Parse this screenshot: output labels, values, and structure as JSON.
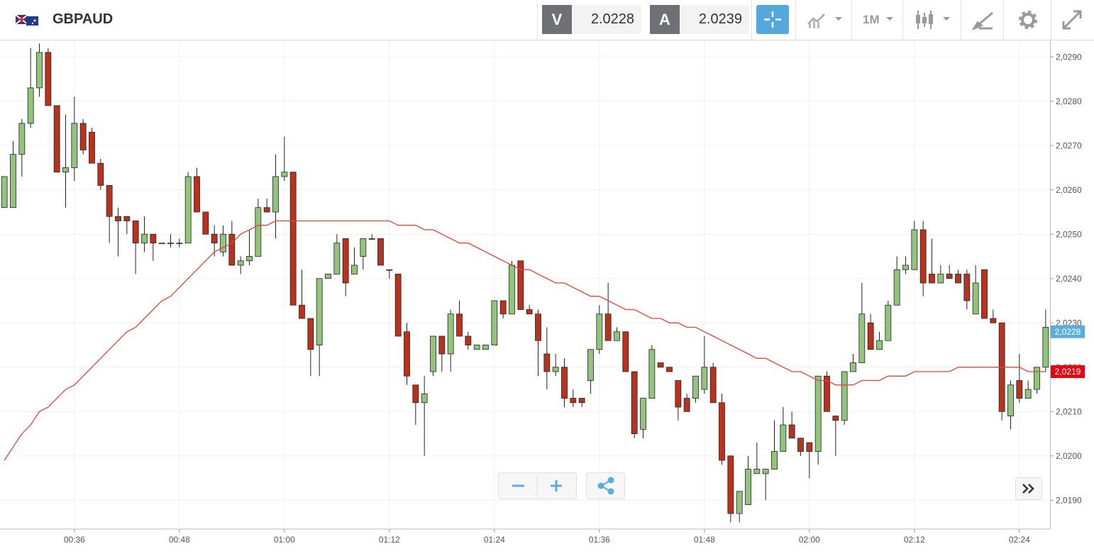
{
  "header": {
    "symbol": "GBPAUD",
    "bid_label": "V",
    "bid": "2.0228",
    "ask_label": "A",
    "ask": "2.0239",
    "timeframe": "1M"
  },
  "chart_data": {
    "type": "candlestick",
    "categories": [
      null,
      null,
      null,
      null,
      null,
      null,
      null,
      null,
      "00:36",
      null,
      null,
      null,
      null,
      null,
      null,
      null,
      null,
      null,
      null,
      null,
      "00:48",
      null,
      null,
      null,
      null,
      null,
      null,
      null,
      null,
      null,
      null,
      null,
      "01:00",
      null,
      null,
      null,
      null,
      null,
      null,
      null,
      null,
      null,
      null,
      null,
      "01:12",
      null,
      null,
      null,
      null,
      null,
      null,
      null,
      null,
      null,
      null,
      null,
      "01:24",
      null,
      null,
      null,
      null,
      null,
      null,
      null,
      null,
      null,
      null,
      null,
      "01:36",
      null,
      null,
      null,
      null,
      null,
      null,
      null,
      null,
      null,
      null,
      null,
      "01:48",
      null,
      null,
      null,
      null,
      null,
      null,
      null,
      null,
      null,
      null,
      null,
      "02:00",
      null,
      null,
      null,
      null,
      null,
      null,
      null,
      null,
      null,
      null,
      null,
      "02:12",
      null,
      null,
      null,
      null,
      null,
      null,
      null,
      null,
      null,
      null,
      null,
      "02:24",
      null,
      null,
      null
    ],
    "open": [
      2.0256,
      2.0256,
      2.0268,
      2.0275,
      2.0283,
      2.0291,
      2.0279,
      2.0264,
      2.0265,
      2.0275,
      2.0273,
      2.0266,
      2.0261,
      2.0254,
      2.0254,
      2.0253,
      2.0248,
      2.025,
      2.0248,
      2.0248,
      2.0248,
      2.0248,
      2.0263,
      2.0255,
      2.025,
      2.0246,
      2.025,
      2.0243,
      2.0244,
      2.0245,
      2.0256,
      2.0255,
      2.0263,
      2.0264,
      2.0234,
      2.0231,
      2.0225,
      2.024,
      2.0241,
      2.0249,
      2.0241,
      2.0245,
      2.0249,
      2.0249,
      2.0242,
      2.0241,
      2.0228,
      2.0216,
      2.0212,
      2.0219,
      2.0227,
      2.0223,
      2.0232,
      2.0227,
      2.0224,
      2.0224,
      2.0225,
      2.0235,
      2.0232,
      2.0244,
      2.0233,
      2.0232,
      2.0223,
      2.0219,
      2.022,
      2.0213,
      2.0213,
      2.0217,
      2.0224,
      2.0232,
      2.0226,
      2.0228,
      2.0219,
      2.0206,
      2.0213,
      2.0221,
      2.022,
      2.0217,
      2.0213,
      2.0213,
      2.0215,
      2.022,
      2.0212,
      2.02,
      2.0187,
      2.0189,
      2.0196,
      2.0196,
      2.0197,
      2.0201,
      2.0207,
      2.0204,
      2.0203,
      2.0201,
      2.0218,
      2.0209,
      2.0208,
      2.0219,
      2.0221,
      2.023,
      2.0224,
      2.0226,
      2.0234,
      2.0242,
      2.0242,
      2.0251,
      2.0241,
      2.0239,
      2.0241,
      2.0241,
      2.0241,
      2.0232,
      2.0242,
      2.0231,
      2.023,
      2.0209,
      2.0217,
      2.0213,
      2.0215,
      2.022
    ],
    "high": [
      2.0263,
      2.0271,
      2.0276,
      2.0292,
      2.0293,
      2.0292,
      2.0279,
      2.0277,
      2.0281,
      2.0276,
      2.0274,
      2.0267,
      2.0261,
      2.0256,
      2.0254,
      2.0253,
      2.0254,
      2.025,
      2.0248,
      2.025,
      2.0249,
      2.0264,
      2.0265,
      2.0255,
      2.0252,
      2.0252,
      2.0253,
      2.0245,
      2.0251,
      2.0258,
      2.0258,
      2.0268,
      2.0272,
      2.0264,
      2.0242,
      2.0231,
      2.024,
      2.0241,
      2.025,
      2.0249,
      2.0247,
      2.0249,
      2.025,
      2.0249,
      2.0242,
      2.0241,
      2.023,
      2.0216,
      2.0218,
      2.0227,
      2.0227,
      2.0233,
      2.0235,
      2.0228,
      2.0225,
      2.0225,
      2.0235,
      2.0235,
      2.0244,
      2.0244,
      2.0234,
      2.0233,
      2.0229,
      2.0223,
      2.0222,
      2.0215,
      2.0213,
      2.0224,
      2.0234,
      2.0239,
      2.0229,
      2.0228,
      2.0219,
      2.0213,
      2.0225,
      2.0221,
      2.022,
      2.0217,
      2.0214,
      2.0218,
      2.0227,
      2.0221,
      2.0214,
      2.02,
      2.0192,
      2.02,
      2.0203,
      2.0197,
      2.0208,
      2.0211,
      2.021,
      2.0204,
      2.0203,
      2.0218,
      2.0219,
      2.0209,
      2.0219,
      2.0223,
      2.0239,
      2.0232,
      2.0228,
      2.0235,
      2.0245,
      2.0245,
      2.0253,
      2.0253,
      2.0249,
      2.0243,
      2.0243,
      2.0242,
      2.0242,
      2.0243,
      2.0242,
      2.0233,
      2.023,
      2.0217,
      2.0223,
      2.0217,
      2.022,
      2.0233
    ],
    "low": [
      2.0256,
      2.0256,
      2.0263,
      2.0274,
      2.0281,
      2.0279,
      2.0264,
      2.0256,
      2.0262,
      2.0268,
      2.0266,
      2.026,
      2.0248,
      2.0245,
      2.025,
      2.0241,
      2.0246,
      2.0244,
      2.0248,
      2.0247,
      2.0247,
      2.0248,
      2.0255,
      2.025,
      2.0245,
      2.0245,
      2.0243,
      2.0241,
      2.0243,
      2.0245,
      2.0255,
      2.0249,
      2.0262,
      2.0234,
      2.0231,
      2.0218,
      2.0218,
      2.024,
      2.0241,
      2.0236,
      2.0241,
      2.0242,
      2.0249,
      2.0243,
      2.024,
      2.0227,
      2.0216,
      2.0207,
      2.02,
      2.0218,
      2.0219,
      2.0219,
      2.0227,
      2.0224,
      2.0224,
      2.0224,
      2.0225,
      2.0231,
      2.0232,
      2.0233,
      2.0232,
      2.0218,
      2.0215,
      2.0218,
      2.0211,
      2.0211,
      2.0211,
      2.0214,
      2.0223,
      2.0226,
      2.0226,
      2.0219,
      2.0204,
      2.0204,
      2.0213,
      2.022,
      2.0219,
      2.0208,
      2.021,
      2.0212,
      2.0214,
      2.0212,
      2.0198,
      2.0185,
      2.0185,
      2.0189,
      2.0196,
      2.019,
      2.0197,
      2.0201,
      2.0204,
      2.02,
      2.0195,
      2.0198,
      2.021,
      2.02,
      2.0207,
      2.0219,
      2.0221,
      2.0224,
      2.0224,
      2.0226,
      2.0234,
      2.0241,
      2.0242,
      2.0236,
      2.0239,
      2.0239,
      2.024,
      2.0239,
      2.0233,
      2.0232,
      2.0231,
      2.023,
      2.0208,
      2.0206,
      2.0212,
      2.0213,
      2.0214,
      2.0219
    ],
    "close": [
      2.0263,
      2.0268,
      2.0275,
      2.0283,
      2.0291,
      2.0279,
      2.0264,
      2.0265,
      2.0275,
      2.0269,
      2.0266,
      2.0261,
      2.0254,
      2.0253,
      2.0253,
      2.0248,
      2.025,
      2.0248,
      2.0248,
      2.0248,
      2.0248,
      2.0263,
      2.0255,
      2.025,
      2.0248,
      2.025,
      2.0243,
      2.0244,
      2.0245,
      2.0256,
      2.0255,
      2.0263,
      2.0264,
      2.0234,
      2.0231,
      2.0224,
      2.024,
      2.0241,
      2.0248,
      2.0239,
      2.0243,
      2.0249,
      2.0249,
      2.0243,
      2.0242,
      2.0227,
      2.0218,
      2.0212,
      2.0214,
      2.0227,
      2.0223,
      2.0232,
      2.0227,
      2.0225,
      2.0225,
      2.0225,
      2.0235,
      2.0232,
      2.0243,
      2.0233,
      2.0232,
      2.0226,
      2.0219,
      2.022,
      2.0213,
      2.0212,
      2.0212,
      2.0224,
      2.0232,
      2.0226,
      2.0228,
      2.0219,
      2.0205,
      2.0213,
      2.0224,
      2.022,
      2.0219,
      2.0211,
      2.021,
      2.0218,
      2.022,
      2.0212,
      2.0199,
      2.0187,
      2.0192,
      2.0197,
      2.0197,
      2.0197,
      2.0201,
      2.0207,
      2.0204,
      2.0201,
      2.0201,
      2.0218,
      2.021,
      2.0208,
      2.0219,
      2.0221,
      2.0232,
      2.0224,
      2.0226,
      2.0234,
      2.0242,
      2.0243,
      2.0251,
      2.0239,
      2.0239,
      2.0241,
      2.024,
      2.0239,
      2.0235,
      2.0239,
      2.0231,
      2.023,
      2.021,
      2.0216,
      2.0213,
      2.0215,
      2.022,
      2.0229
    ],
    "up_color": "#93c47d",
    "down_color": "#b5341f",
    "line": {
      "color": "#e0453a",
      "values": [
        2.0199,
        2.0202,
        2.0205,
        2.0207,
        2.021,
        2.0211,
        2.0213,
        2.0215,
        2.0216,
        2.0218,
        2.022,
        2.0222,
        2.0224,
        2.0226,
        2.0228,
        2.0229,
        2.0231,
        2.0233,
        2.0235,
        2.0236,
        2.0238,
        2.024,
        2.0242,
        2.0244,
        2.0246,
        2.0247,
        2.0248,
        2.025,
        2.0251,
        2.0252,
        2.0252,
        2.0253,
        2.0253,
        2.0253,
        2.0253,
        2.0253,
        2.0253,
        2.0253,
        2.0253,
        2.0253,
        2.0253,
        2.0253,
        2.0253,
        2.0253,
        2.0253,
        2.0252,
        2.0252,
        2.0252,
        2.0251,
        2.0251,
        2.025,
        2.0249,
        2.0248,
        2.0248,
        2.0247,
        2.0246,
        2.0245,
        2.0244,
        2.0243,
        2.0242,
        2.0242,
        2.0241,
        2.024,
        2.0239,
        2.0239,
        2.0238,
        2.0237,
        2.0236,
        2.0236,
        2.0235,
        2.0234,
        2.0233,
        2.0233,
        2.0232,
        2.0231,
        2.0231,
        2.023,
        2.023,
        2.0229,
        2.0229,
        2.0228,
        2.0227,
        2.0226,
        2.0225,
        2.0224,
        2.0223,
        2.0222,
        2.0222,
        2.0221,
        2.022,
        2.0219,
        2.0219,
        2.0218,
        2.0217,
        2.0217,
        2.0216,
        2.0216,
        2.0216,
        2.0217,
        2.0217,
        2.0217,
        2.0218,
        2.0218,
        2.0218,
        2.0219,
        2.0219,
        2.0219,
        2.0219,
        2.0219,
        2.022,
        2.022,
        2.022,
        2.022,
        2.022,
        2.022,
        2.022,
        2.022,
        2.0219,
        2.0219,
        2.0219
      ]
    },
    "price_markers": [
      {
        "value": 2.0228,
        "label": "2,0228",
        "color": "#5aaedb"
      },
      {
        "value": 2.0219,
        "label": "2,0219",
        "color": "#e30613"
      }
    ],
    "ylim": [
      2.01835,
      2.02937
    ],
    "yticks": [
      {
        "value": 2.019,
        "label": "2,0190"
      },
      {
        "value": 2.02,
        "label": "2,0200"
      },
      {
        "value": 2.021,
        "label": "2,0210"
      },
      {
        "value": 2.022,
        "label": "2,0220"
      },
      {
        "value": 2.023,
        "label": "2,0230"
      },
      {
        "value": 2.024,
        "label": "2,0240"
      },
      {
        "value": 2.025,
        "label": "2,0250"
      },
      {
        "value": 2.026,
        "label": "2,0260"
      },
      {
        "value": 2.027,
        "label": "2,0270"
      },
      {
        "value": 2.028,
        "label": "2,0280"
      },
      {
        "value": 2.029,
        "label": "2,0290"
      }
    ],
    "grid": true
  }
}
